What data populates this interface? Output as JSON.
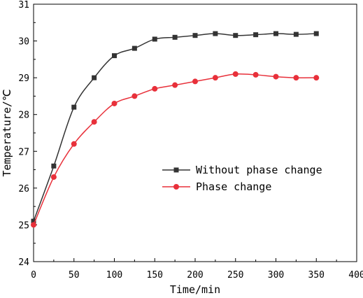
{
  "chart_data": {
    "type": "line",
    "xlabel": "Time/min",
    "ylabel": "Temperature/℃",
    "xlim": [
      0,
      400
    ],
    "ylim": [
      24,
      31
    ],
    "x_ticks": [
      "0",
      "50",
      "100",
      "150",
      "200",
      "250",
      "300",
      "350",
      "400"
    ],
    "y_ticks": [
      "24",
      "25",
      "26",
      "27",
      "28",
      "29",
      "30",
      "31"
    ],
    "grid": false,
    "legend_position": "center-right",
    "x": [
      0,
      25,
      50,
      75,
      100,
      125,
      150,
      175,
      200,
      225,
      250,
      275,
      300,
      325,
      350
    ],
    "series": [
      {
        "name": "Without phase change",
        "color": "#333333",
        "marker": "square",
        "values": [
          25.1,
          26.6,
          28.2,
          29.0,
          29.6,
          29.8,
          30.05,
          30.1,
          30.15,
          30.2,
          30.15,
          30.17,
          30.2,
          30.18,
          30.2
        ]
      },
      {
        "name": "Phase change",
        "color": "#e8303a",
        "marker": "circle",
        "values": [
          25.0,
          26.3,
          27.2,
          27.8,
          28.3,
          28.5,
          28.7,
          28.8,
          28.9,
          29.0,
          29.1,
          29.08,
          29.03,
          29.0,
          29.0
        ]
      }
    ]
  }
}
